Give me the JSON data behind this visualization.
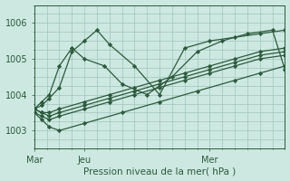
{
  "xlabel": "Pression niveau de la mer( hPa )",
  "bg_color": "#cce8e0",
  "plot_bg_color": "#cce8e0",
  "grid_color": "#a0c4bc",
  "line_color": "#2d5a3d",
  "tick_label_color": "#2d5a3d",
  "axis_label_color": "#2d5a3d",
  "ylim": [
    1002.5,
    1006.5
  ],
  "yticks": [
    1003,
    1004,
    1005,
    1006
  ],
  "xtick_labels": [
    "Mar",
    "Jeu",
    "Mer"
  ],
  "xtick_positions": [
    0,
    2,
    7
  ],
  "total_steps": 10,
  "series": [
    {
      "x": [
        0,
        0.3,
        0.6,
        1.0,
        1.5,
        2.0,
        2.8,
        3.5,
        4.5,
        5.5,
        6.5,
        7.5,
        8.5,
        9.5,
        10.0
      ],
      "y": [
        1003.6,
        1003.8,
        1004.0,
        1004.8,
        1005.3,
        1005.0,
        1004.8,
        1004.3,
        1004.0,
        1004.5,
        1005.2,
        1005.5,
        1005.7,
        1005.8,
        1004.7
      ]
    },
    {
      "x": [
        0,
        0.3,
        0.6,
        1.0,
        1.5,
        2.0,
        2.5,
        3.0,
        4.0,
        5.0,
        6.0,
        7.0,
        8.0,
        9.0,
        10.0
      ],
      "y": [
        1003.6,
        1003.7,
        1003.9,
        1004.2,
        1005.2,
        1005.5,
        1005.8,
        1005.4,
        1004.8,
        1004.0,
        1005.3,
        1005.5,
        1005.6,
        1005.7,
        1005.8
      ]
    },
    {
      "x": [
        0,
        0.3,
        0.6,
        1.0,
        2.0,
        3.0,
        4.0,
        5.0,
        6.0,
        7.0,
        8.0,
        9.0,
        10.0
      ],
      "y": [
        1003.6,
        1003.5,
        1003.5,
        1003.6,
        1003.8,
        1004.0,
        1004.2,
        1004.4,
        1004.6,
        1004.8,
        1005.0,
        1005.2,
        1005.3
      ]
    },
    {
      "x": [
        0,
        0.3,
        0.6,
        1.0,
        2.0,
        3.0,
        4.0,
        5.0,
        6.0,
        7.0,
        8.0,
        9.0,
        10.0
      ],
      "y": [
        1003.6,
        1003.5,
        1003.4,
        1003.5,
        1003.7,
        1003.9,
        1004.1,
        1004.3,
        1004.5,
        1004.7,
        1004.9,
        1005.1,
        1005.2
      ]
    },
    {
      "x": [
        0,
        0.3,
        0.6,
        1.0,
        2.0,
        3.0,
        4.0,
        5.0,
        6.0,
        7.0,
        8.0,
        9.0,
        10.0
      ],
      "y": [
        1003.5,
        1003.4,
        1003.3,
        1003.4,
        1003.6,
        1003.8,
        1004.0,
        1004.2,
        1004.4,
        1004.6,
        1004.8,
        1005.0,
        1005.1
      ]
    },
    {
      "x": [
        0,
        0.3,
        0.6,
        1.0,
        2.0,
        3.5,
        5.0,
        6.5,
        8.0,
        9.0,
        10.0
      ],
      "y": [
        1003.5,
        1003.3,
        1003.1,
        1003.0,
        1003.2,
        1003.5,
        1003.8,
        1004.1,
        1004.4,
        1004.6,
        1004.8
      ]
    }
  ]
}
